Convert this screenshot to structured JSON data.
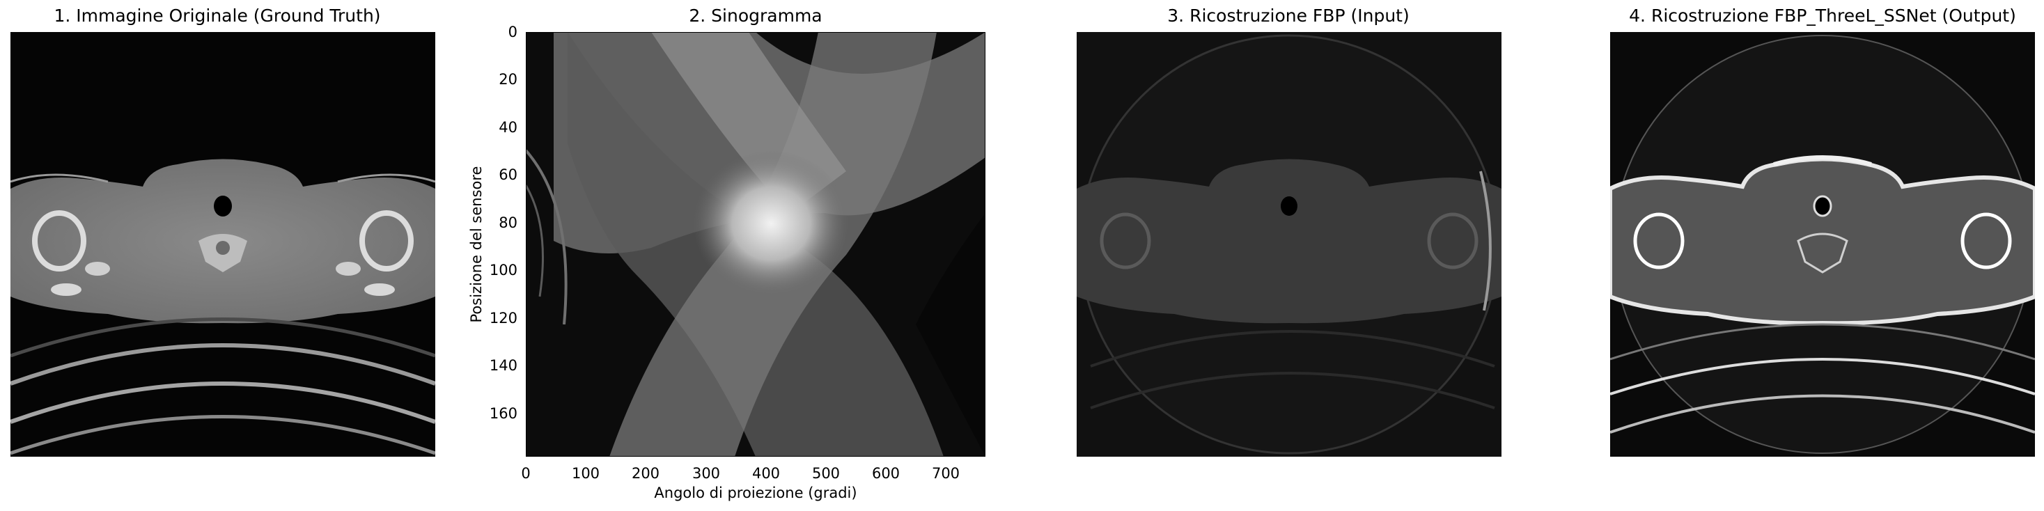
{
  "panels": [
    {
      "title": "1. Immagine Originale (Ground Truth)"
    },
    {
      "title": "2. Sinogramma"
    },
    {
      "title": "3. Ricostruzione FBP (Input)"
    },
    {
      "title": "4. Ricostruzione FBP_ThreeL_SSNet (Output)"
    }
  ],
  "sinogram": {
    "xlabel": "Angolo di proiezione (gradi)",
    "ylabel": "Posizione del sensore",
    "x_ticks": [
      "0",
      "100",
      "200",
      "300",
      "400",
      "500",
      "600",
      "700"
    ],
    "y_ticks": [
      "0",
      "20",
      "40",
      "60",
      "80",
      "100",
      "120",
      "140",
      "160"
    ],
    "x_range": [
      0,
      765
    ],
    "y_range": [
      0,
      178
    ]
  },
  "colormap": "gray"
}
